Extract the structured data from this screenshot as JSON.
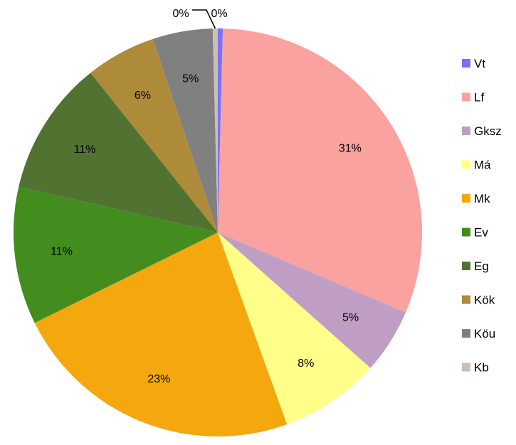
{
  "chart_data": {
    "type": "pie",
    "title": "",
    "legend_position": "right",
    "slices": [
      {
        "label": "Vt",
        "value": 0.4,
        "display": "0%",
        "color": "#7b72f5"
      },
      {
        "label": "Lf",
        "value": 31.3,
        "display": "31%",
        "color": "#f9a29f"
      },
      {
        "label": "Gksz",
        "value": 5.2,
        "display": "5%",
        "color": "#c09ec4"
      },
      {
        "label": "Má",
        "value": 8.0,
        "display": "8%",
        "color": "#ffff8a"
      },
      {
        "label": "Mk",
        "value": 23.4,
        "display": "23%",
        "color": "#f5a70e"
      },
      {
        "label": "Ev",
        "value": 11.0,
        "display": "11%",
        "color": "#428d1e"
      },
      {
        "label": "Eg",
        "value": 10.8,
        "display": "11%",
        "color": "#527232"
      },
      {
        "label": "Kök",
        "value": 5.6,
        "display": "6%",
        "color": "#ae8b38"
      },
      {
        "label": "Köu",
        "value": 4.8,
        "display": "5%",
        "color": "#808080"
      },
      {
        "label": "Kb",
        "value": 0.4,
        "display": "0%",
        "color": "#cdbfb2"
      }
    ]
  }
}
